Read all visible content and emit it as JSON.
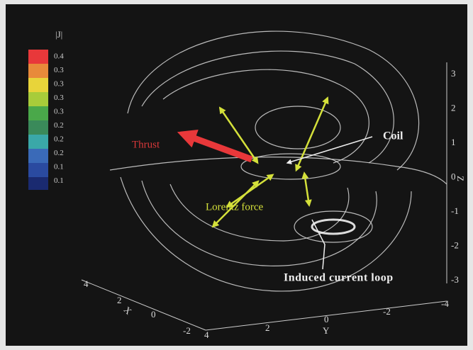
{
  "colorbar": {
    "title": "|J|",
    "labels": [
      "0.4",
      "0.3",
      "0.3",
      "0.3",
      "0.3",
      "0.2",
      "0.2",
      "0.2",
      "0.1",
      "0.1"
    ]
  },
  "annotations": {
    "coil": "Coil",
    "thrust": "Thrust",
    "lorentz": "Lorentz force",
    "loop": "Induced current loop"
  },
  "axes": {
    "z": {
      "label": "Z",
      "ticks": [
        "3",
        "2",
        "1",
        "0",
        "-1",
        "-2",
        "-3"
      ]
    },
    "x": {
      "label": "X",
      "ticks": [
        "4",
        "2",
        "0",
        "-2"
      ]
    },
    "y": {
      "label": "Y",
      "ticks": [
        "4",
        "2",
        "0",
        "-2",
        "-4"
      ]
    }
  }
}
